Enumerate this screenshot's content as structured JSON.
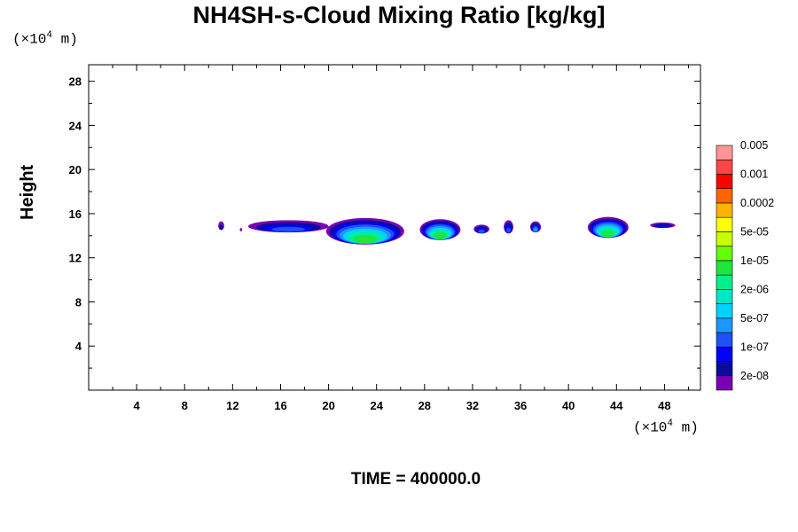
{
  "chart_data": {
    "type": "heatmap",
    "title": "NH4SH-s-Cloud Mixing Ratio [kg/kg]",
    "ylabel": "Height",
    "xlabel": "",
    "x_unit": "(×10",
    "y_unit": "(×10",
    "unit_exp": "4",
    "unit_tail": " m)",
    "xlim": [
      0,
      51
    ],
    "ylim": [
      0,
      29.5
    ],
    "x_ticks": [
      4,
      8,
      12,
      16,
      20,
      24,
      28,
      32,
      36,
      40,
      44,
      48
    ],
    "x_tick_labels": [
      "4",
      "8",
      "12",
      "16",
      "20",
      "24",
      "28",
      "32",
      "36",
      "40",
      "44",
      "48"
    ],
    "y_ticks": [
      4,
      8,
      12,
      16,
      20,
      24,
      28
    ],
    "y_tick_labels": [
      "4",
      "8",
      "12",
      "16",
      "20",
      "24",
      "28"
    ],
    "colorbar": {
      "colors": [
        "#7a00b4",
        "#0a0aa0",
        "#0000ff",
        "#1e50ff",
        "#1e96ff",
        "#00d2ff",
        "#00e6c8",
        "#00f08c",
        "#1ee63c",
        "#64ff00",
        "#c8ff00",
        "#ffff00",
        "#ffb400",
        "#ff6400",
        "#ff0000",
        "#ff4646",
        "#ff9696"
      ],
      "labels": [
        "2e-08",
        "1e-07",
        "5e-07",
        "2e-06",
        "1e-05",
        "5e-05",
        "0.0002",
        "0.001",
        "0.005"
      ]
    },
    "cloud_patches": [
      {
        "x": [
          10.8,
          11.3
        ],
        "y": [
          14.5,
          15.3
        ],
        "peak_level": 1
      },
      {
        "x": [
          12.6,
          12.8
        ],
        "y": [
          14.4,
          14.7
        ],
        "peak_level": 0
      },
      {
        "x": [
          13.3,
          20.0
        ],
        "y": [
          14.3,
          15.4
        ],
        "peak_level": 3
      },
      {
        "x": [
          19.8,
          26.3
        ],
        "y": [
          13.2,
          15.6
        ],
        "peak_level": 8
      },
      {
        "x": [
          27.6,
          31.0
        ],
        "y": [
          13.6,
          15.5
        ],
        "peak_level": 8
      },
      {
        "x": [
          32.1,
          33.4
        ],
        "y": [
          14.2,
          15.0
        ],
        "peak_level": 3
      },
      {
        "x": [
          34.6,
          35.4
        ],
        "y": [
          14.2,
          15.4
        ],
        "peak_level": 3
      },
      {
        "x": [
          36.8,
          37.7
        ],
        "y": [
          14.3,
          15.3
        ],
        "peak_level": 4
      },
      {
        "x": [
          41.6,
          45.0
        ],
        "y": [
          13.8,
          15.7
        ],
        "peak_level": 8
      },
      {
        "x": [
          46.8,
          48.9
        ],
        "y": [
          14.7,
          15.2
        ],
        "peak_level": 2
      }
    ]
  },
  "footer": {
    "time_label": "TIME = 400000.0"
  }
}
